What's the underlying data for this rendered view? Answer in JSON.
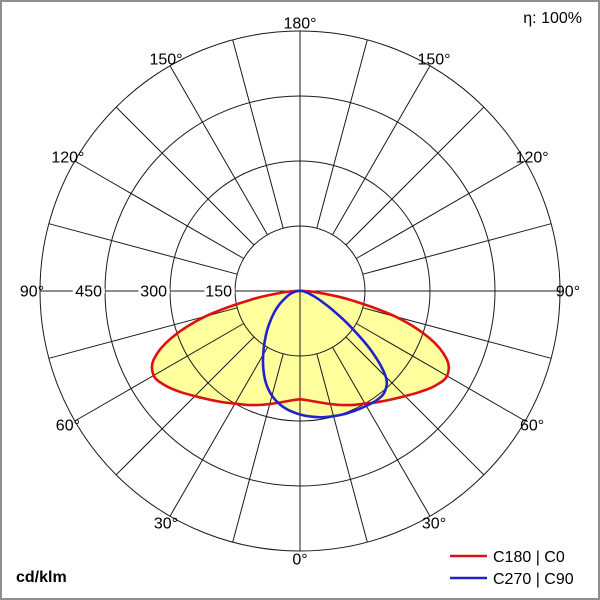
{
  "header": {
    "efficiency": "η: 100%"
  },
  "footer": {
    "unit": "cd/klm"
  },
  "legend": [
    {
      "label": "C180 | C0",
      "color": "#dd1111"
    },
    {
      "label": "C270 | C90",
      "color": "#2222cc"
    }
  ],
  "chart_data": {
    "type": "line",
    "subtype": "polar-photometric-luminaire-distribution",
    "units": "cd/klm",
    "efficiency": "η: 100%",
    "rings": [
      150,
      300,
      450,
      600
    ],
    "labeled_rings": [
      150,
      300,
      450
    ],
    "grid_step_deg": 15,
    "angle_label_step_deg": 30,
    "angle_labels": [
      "0°",
      "30°",
      "60°",
      "90°",
      "120°",
      "150°",
      "180°"
    ],
    "grid_color": "#1a1a1a",
    "series": [
      {
        "name": "C180 | C0",
        "color": "#dd1111",
        "fill": "#ffff9e",
        "points": [
          [
            -90,
            10
          ],
          [
            -85,
            40
          ],
          [
            -80,
            115
          ],
          [
            -75,
            225
          ],
          [
            -70,
            315
          ],
          [
            -65,
            372
          ],
          [
            -60,
            390
          ],
          [
            -55,
            380
          ],
          [
            -50,
            362
          ],
          [
            -45,
            343
          ],
          [
            -40,
            327
          ],
          [
            -35,
            313
          ],
          [
            -30,
            300
          ],
          [
            -25,
            290
          ],
          [
            -20,
            280
          ],
          [
            -15,
            270
          ],
          [
            -10,
            261
          ],
          [
            -5,
            254
          ],
          [
            0,
            250
          ],
          [
            5,
            254
          ],
          [
            10,
            261
          ],
          [
            15,
            270
          ],
          [
            20,
            280
          ],
          [
            25,
            290
          ],
          [
            30,
            300
          ],
          [
            35,
            313
          ],
          [
            40,
            327
          ],
          [
            45,
            343
          ],
          [
            50,
            362
          ],
          [
            55,
            381
          ],
          [
            60,
            392
          ],
          [
            65,
            374
          ],
          [
            70,
            318
          ],
          [
            75,
            228
          ],
          [
            80,
            118
          ],
          [
            85,
            42
          ],
          [
            90,
            10
          ]
        ]
      },
      {
        "name": "C270 | C90",
        "color": "#2222cc",
        "fill": "#ffff9e",
        "points": [
          [
            -90,
            5
          ],
          [
            -80,
            14
          ],
          [
            -70,
            28
          ],
          [
            -60,
            48
          ],
          [
            -55,
            62
          ],
          [
            -50,
            78
          ],
          [
            -45,
            96
          ],
          [
            -40,
            118
          ],
          [
            -35,
            142
          ],
          [
            -30,
            170
          ],
          [
            -25,
            200
          ],
          [
            -20,
            228
          ],
          [
            -15,
            250
          ],
          [
            -10,
            266
          ],
          [
            -5,
            277
          ],
          [
            0,
            285
          ],
          [
            5,
            291
          ],
          [
            10,
            296
          ],
          [
            15,
            299
          ],
          [
            20,
            302
          ],
          [
            25,
            304
          ],
          [
            30,
            306
          ],
          [
            35,
            308
          ],
          [
            40,
            304
          ],
          [
            45,
            280
          ],
          [
            50,
            215
          ],
          [
            55,
            140
          ],
          [
            60,
            85
          ],
          [
            65,
            52
          ],
          [
            70,
            32
          ],
          [
            75,
            20
          ],
          [
            80,
            12
          ],
          [
            90,
            5
          ]
        ]
      }
    ]
  }
}
